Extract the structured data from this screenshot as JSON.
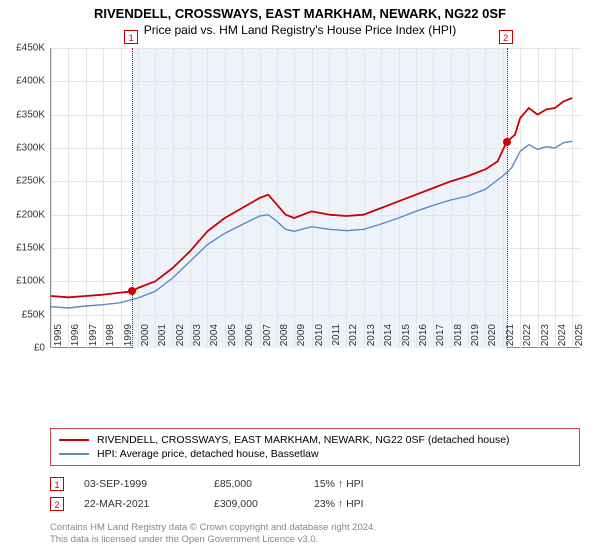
{
  "titles": {
    "main": "RIVENDELL, CROSSWAYS, EAST MARKHAM, NEWARK, NG22 0SF",
    "sub": "Price paid vs. HM Land Registry's House Price Index (HPI)"
  },
  "chart": {
    "type": "line",
    "xlim": [
      1995,
      2025.5
    ],
    "ylim": [
      0,
      450000
    ],
    "ytick_step": 50000,
    "yticks_labels": [
      "£0",
      "£50K",
      "£100K",
      "£150K",
      "£200K",
      "£250K",
      "£300K",
      "£350K",
      "£400K",
      "£450K"
    ],
    "xticks": [
      1995,
      1996,
      1997,
      1998,
      1999,
      2000,
      2001,
      2002,
      2003,
      2004,
      2005,
      2006,
      2007,
      2008,
      2009,
      2010,
      2011,
      2012,
      2013,
      2014,
      2015,
      2016,
      2017,
      2018,
      2019,
      2020,
      2021,
      2022,
      2023,
      2024,
      2025
    ],
    "shade_start": 1999.67,
    "shade_end": 2021.22,
    "background_color": "#ffffff",
    "shade_color": "#eef3f9",
    "grid_color": "#e5e5e5",
    "series": [
      {
        "name": "red",
        "color": "#cc0000",
        "width": 1.8,
        "points": [
          [
            1995,
            78000
          ],
          [
            1996,
            76000
          ],
          [
            1997,
            78000
          ],
          [
            1998,
            80000
          ],
          [
            1999,
            83000
          ],
          [
            1999.67,
            85000
          ],
          [
            2000,
            90000
          ],
          [
            2001,
            100000
          ],
          [
            2002,
            120000
          ],
          [
            2003,
            145000
          ],
          [
            2004,
            175000
          ],
          [
            2005,
            195000
          ],
          [
            2006,
            210000
          ],
          [
            2007,
            225000
          ],
          [
            2007.5,
            230000
          ],
          [
            2008,
            215000
          ],
          [
            2008.5,
            200000
          ],
          [
            2009,
            195000
          ],
          [
            2010,
            205000
          ],
          [
            2011,
            200000
          ],
          [
            2012,
            198000
          ],
          [
            2013,
            200000
          ],
          [
            2014,
            210000
          ],
          [
            2015,
            220000
          ],
          [
            2016,
            230000
          ],
          [
            2017,
            240000
          ],
          [
            2018,
            250000
          ],
          [
            2019,
            258000
          ],
          [
            2020,
            268000
          ],
          [
            2020.7,
            280000
          ],
          [
            2021.22,
            309000
          ],
          [
            2021.7,
            320000
          ],
          [
            2022,
            345000
          ],
          [
            2022.5,
            360000
          ],
          [
            2023,
            350000
          ],
          [
            2023.5,
            358000
          ],
          [
            2024,
            360000
          ],
          [
            2024.5,
            370000
          ],
          [
            2025,
            375000
          ]
        ]
      },
      {
        "name": "blue",
        "color": "#5b8cc4",
        "width": 1.4,
        "points": [
          [
            1995,
            62000
          ],
          [
            1996,
            60000
          ],
          [
            1997,
            63000
          ],
          [
            1998,
            65000
          ],
          [
            1999,
            68000
          ],
          [
            2000,
            75000
          ],
          [
            2001,
            85000
          ],
          [
            2002,
            105000
          ],
          [
            2003,
            130000
          ],
          [
            2004,
            155000
          ],
          [
            2005,
            172000
          ],
          [
            2006,
            185000
          ],
          [
            2007,
            198000
          ],
          [
            2007.5,
            200000
          ],
          [
            2008,
            190000
          ],
          [
            2008.5,
            178000
          ],
          [
            2009,
            175000
          ],
          [
            2010,
            182000
          ],
          [
            2011,
            178000
          ],
          [
            2012,
            176000
          ],
          [
            2013,
            178000
          ],
          [
            2014,
            186000
          ],
          [
            2015,
            195000
          ],
          [
            2016,
            205000
          ],
          [
            2017,
            214000
          ],
          [
            2018,
            222000
          ],
          [
            2019,
            228000
          ],
          [
            2020,
            238000
          ],
          [
            2021,
            258000
          ],
          [
            2021.5,
            270000
          ],
          [
            2022,
            295000
          ],
          [
            2022.5,
            305000
          ],
          [
            2023,
            298000
          ],
          [
            2023.5,
            302000
          ],
          [
            2024,
            300000
          ],
          [
            2024.5,
            308000
          ],
          [
            2025,
            310000
          ]
        ]
      }
    ],
    "markers": [
      {
        "n": "1",
        "x": 1999.67,
        "y": 85000
      },
      {
        "n": "2",
        "x": 2021.22,
        "y": 309000
      }
    ]
  },
  "legend": {
    "items": [
      {
        "color": "#cc0000",
        "label": "RIVENDELL, CROSSWAYS, EAST MARKHAM, NEWARK, NG22 0SF (detached house)"
      },
      {
        "color": "#5b8cc4",
        "label": "HPI: Average price, detached house, Bassetlaw"
      }
    ]
  },
  "events": [
    {
      "n": "1",
      "date": "03-SEP-1999",
      "price": "£85,000",
      "pct": "15% ↑ HPI"
    },
    {
      "n": "2",
      "date": "22-MAR-2021",
      "price": "£309,000",
      "pct": "23% ↑ HPI"
    }
  ],
  "footer": {
    "line1": "Contains HM Land Registry data © Crown copyright and database right 2024.",
    "line2": "This data is licensed under the Open Government Licence v3.0."
  }
}
